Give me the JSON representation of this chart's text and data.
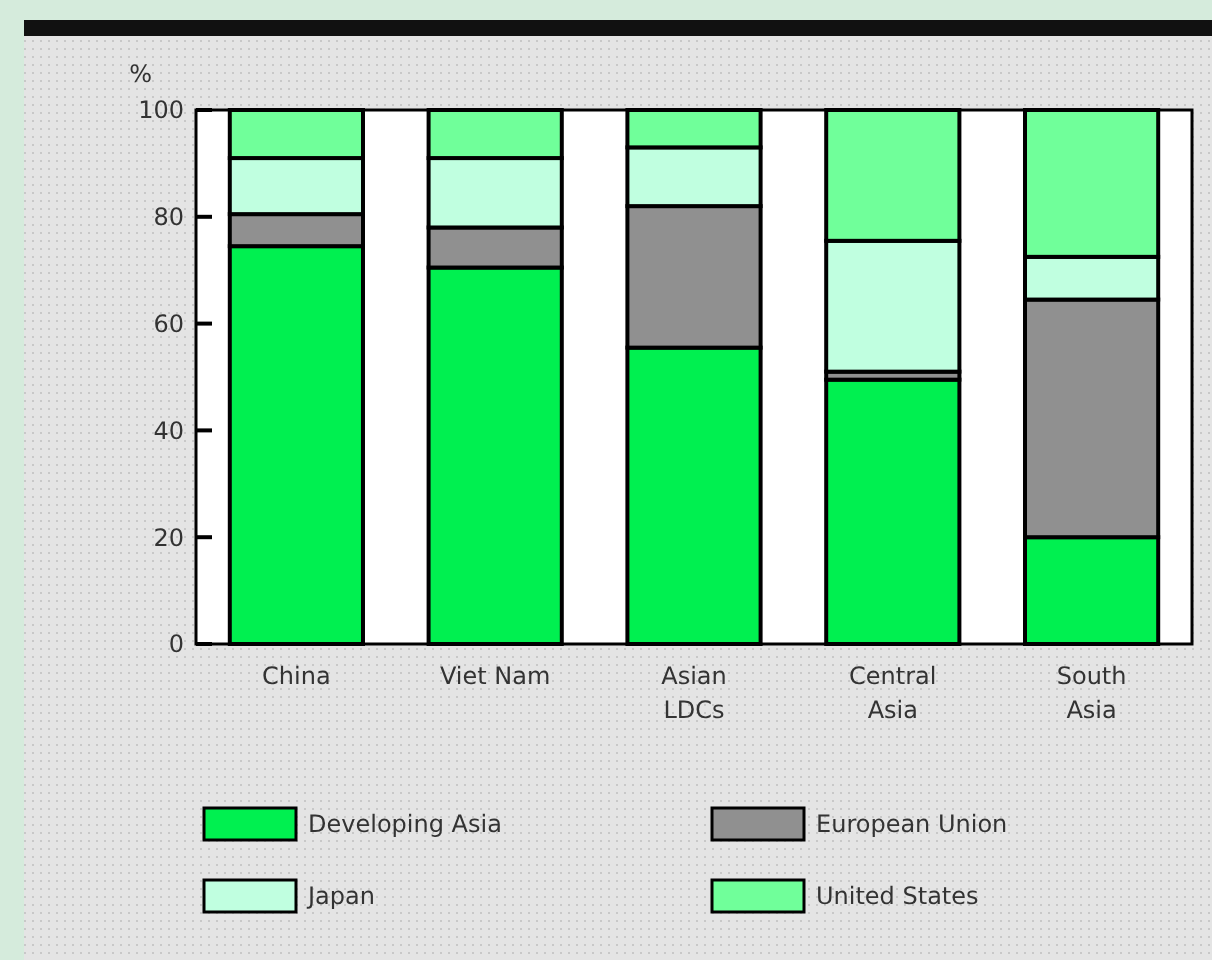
{
  "chart_data": {
    "type": "bar",
    "stacked": true,
    "ylabel": "%",
    "categories": [
      "China",
      "Viet Nam",
      "Asian\nLDCs",
      "Central\nAsia",
      "South\nAsia"
    ],
    "series": [
      {
        "name": "Developing Asia",
        "color": "#00f050",
        "values": [
          74.5,
          70.5,
          55.5,
          49.5,
          20
        ]
      },
      {
        "name": "European Union",
        "color": "#909090",
        "values": [
          6,
          7.5,
          26.5,
          1.5,
          44.5
        ]
      },
      {
        "name": "Japan",
        "color": "#c0ffe0",
        "values": [
          10.5,
          13,
          11,
          24.5,
          8
        ]
      },
      {
        "name": "United States",
        "color": "#70ff9a",
        "values": [
          9,
          9,
          7,
          24.5,
          27.5
        ]
      }
    ],
    "ylim": [
      0,
      100
    ],
    "yticks": [
      0,
      20,
      40,
      60,
      80,
      100
    ],
    "grid": false,
    "legend": "bottom"
  }
}
